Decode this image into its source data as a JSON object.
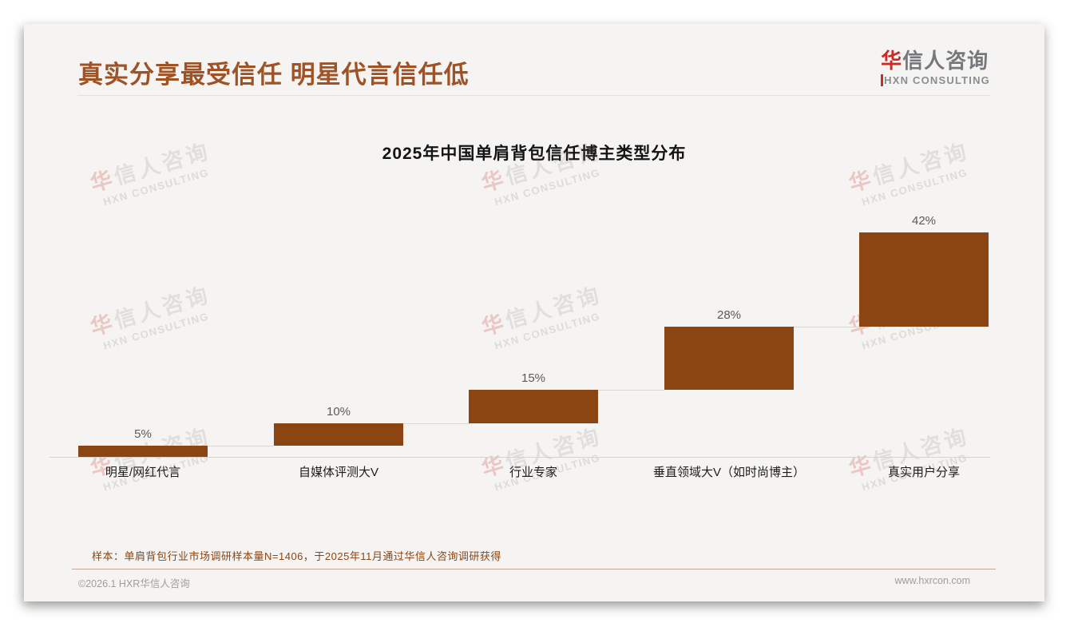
{
  "page": {
    "main_title": "真实分享最受信任 明星代言信任低",
    "logo": {
      "cn_accent": "华",
      "cn_rest": "信人咨询",
      "en_accent": "H",
      "en_rest": "XN CONSULTING"
    },
    "watermark": {
      "cn_accent": "华",
      "cn_rest": "信人咨询",
      "en": "HXN CONSULTING"
    },
    "note": "样本：单肩背包行业市场调研样本量N=1406，于2025年11月通过华信人咨询调研获得",
    "footer_left": "©2026.1 HXR华信人咨询",
    "footer_right": "www.hxrcon.com"
  },
  "colors": {
    "bar": "#8a4513",
    "headline": "#9e5326",
    "accent_red": "#cc2b24",
    "note_text": "#8b4513"
  },
  "chart_data": {
    "type": "bar",
    "subtype": "waterfall-step",
    "title": "2025年中国单肩背包信任博主类型分布",
    "categories": [
      "明星/网红代言",
      "自媒体评测大V",
      "行业专家",
      "垂直领域大V（如时尚博主）",
      "真实用户分享"
    ],
    "values": [
      5,
      10,
      15,
      28,
      42
    ],
    "labels": [
      "5%",
      "10%",
      "15%",
      "28%",
      "42%"
    ],
    "unit": "%",
    "ylim": [
      0,
      100
    ],
    "grid": false,
    "legend": false,
    "value_label_position": "above-bar",
    "note": "bars are cumulative steps: each bar's base sits at the running total of previous bars; thin connector lines join consecutive steps"
  }
}
